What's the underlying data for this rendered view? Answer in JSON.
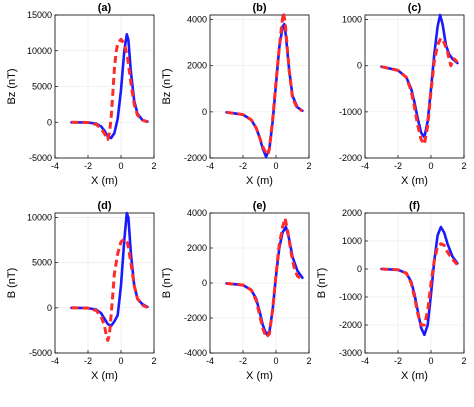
{
  "chart_data": [
    {
      "type": "line",
      "title": "(a)",
      "xlabel": "X (m)",
      "ylabel": "Bz (nT)",
      "xlim": [
        -4,
        2
      ],
      "ylim": [
        -5000,
        15000
      ],
      "xticks": [
        -4,
        -2,
        0,
        2
      ],
      "yticks": [
        -5000,
        0,
        5000,
        10000,
        15000
      ],
      "ytick_labels": [
        "-5000",
        "0",
        "5000",
        "10000",
        "15000"
      ],
      "grid": true,
      "series": [
        {
          "style": "solid",
          "color": "#1a1aff",
          "x": [
            -3.0,
            -2.0,
            -1.5,
            -1.2,
            -1.0,
            -0.8,
            -0.6,
            -0.4,
            -0.2,
            0.0,
            0.2,
            0.35,
            0.45,
            0.6,
            0.8,
            1.0,
            1.3,
            1.6
          ],
          "y": [
            0,
            -30,
            -200,
            -600,
            -1200,
            -2000,
            -2200,
            -1500,
            500,
            4500,
            10000,
            12300,
            11500,
            7000,
            3000,
            1200,
            300,
            100
          ]
        },
        {
          "style": "dashed",
          "color": "#ff2a2a",
          "x": [
            -3.0,
            -2.0,
            -1.5,
            -1.2,
            -1.0,
            -0.8,
            -0.7,
            -0.6,
            -0.5,
            -0.4,
            -0.3,
            -0.2,
            0.0,
            0.2,
            0.4,
            0.6,
            0.8,
            1.0,
            1.3,
            1.6
          ],
          "y": [
            0,
            -30,
            -300,
            -900,
            -1600,
            -2400,
            -1500,
            500,
            4000,
            7500,
            9800,
            11000,
            11600,
            11000,
            9000,
            5500,
            2500,
            1000,
            300,
            50
          ]
        }
      ]
    },
    {
      "type": "line",
      "title": "(b)",
      "xlabel": "X (m)",
      "ylabel": "Bz (nT)",
      "xlim": [
        -4,
        2
      ],
      "ylim": [
        -2000,
        4200
      ],
      "xticks": [
        -4,
        -2,
        0,
        2
      ],
      "yticks": [
        -2000,
        0,
        2000,
        4000
      ],
      "ytick_labels": [
        "-2000",
        "0",
        "2000",
        "4000"
      ],
      "grid": true,
      "series": [
        {
          "style": "solid",
          "color": "#1a1aff",
          "x": [
            -3.0,
            -2.0,
            -1.5,
            -1.2,
            -1.0,
            -0.8,
            -0.6,
            -0.4,
            -0.2,
            0.0,
            0.2,
            0.4,
            0.5,
            0.6,
            0.8,
            1.0,
            1.3,
            1.6
          ],
          "y": [
            -20,
            -120,
            -350,
            -700,
            -1100,
            -1600,
            -1950,
            -1600,
            -400,
            1200,
            2800,
            3700,
            3800,
            3300,
            1800,
            700,
            200,
            50
          ]
        },
        {
          "style": "dashed",
          "color": "#ff2a2a",
          "x": [
            -3.0,
            -2.0,
            -1.5,
            -1.2,
            -1.0,
            -0.8,
            -0.6,
            -0.5,
            -0.4,
            -0.2,
            0.0,
            0.2,
            0.35,
            0.45,
            0.55,
            0.8,
            1.0,
            1.3,
            1.6
          ],
          "y": [
            -20,
            -120,
            -350,
            -700,
            -1100,
            -1500,
            -1800,
            -1850,
            -1600,
            -300,
            1300,
            2800,
            3800,
            4300,
            3900,
            1800,
            600,
            150,
            50
          ]
        }
      ]
    },
    {
      "type": "line",
      "title": "(c)",
      "xlabel": "X (m)",
      "ylabel": "",
      "xlim": [
        -4,
        2
      ],
      "ylim": [
        -2000,
        1100
      ],
      "xticks": [
        -4,
        -2,
        0,
        2
      ],
      "yticks": [
        -2000,
        -1000,
        0,
        1000
      ],
      "ytick_labels": [
        "-2000",
        "-1000",
        "0",
        "1000"
      ],
      "grid": true,
      "series": [
        {
          "style": "solid",
          "color": "#1a1aff",
          "x": [
            -3.0,
            -2.0,
            -1.5,
            -1.2,
            -1.0,
            -0.8,
            -0.6,
            -0.4,
            -0.2,
            0.0,
            0.2,
            0.4,
            0.55,
            0.7,
            0.9,
            1.1,
            1.3,
            1.6
          ],
          "y": [
            -20,
            -100,
            -250,
            -500,
            -800,
            -1150,
            -1450,
            -1550,
            -1200,
            -500,
            250,
            850,
            1100,
            900,
            450,
            250,
            150,
            60
          ]
        },
        {
          "style": "dashed",
          "color": "#ff2a2a",
          "x": [
            -3.0,
            -2.0,
            -1.5,
            -1.2,
            -1.0,
            -0.8,
            -0.6,
            -0.4,
            -0.2,
            0.0,
            0.2,
            0.4,
            0.6,
            0.8,
            1.0,
            1.2,
            1.4,
            1.6
          ],
          "y": [
            -20,
            -100,
            -250,
            -550,
            -900,
            -1300,
            -1600,
            -1700,
            -1300,
            -550,
            100,
            450,
            600,
            500,
            300,
            0,
            150,
            80
          ]
        }
      ]
    },
    {
      "type": "line",
      "title": "(d)",
      "xlabel": "X (m)",
      "ylabel": "B (nT)",
      "xlim": [
        -4,
        2
      ],
      "ylim": [
        -5000,
        10500
      ],
      "xticks": [
        -4,
        -2,
        0,
        2
      ],
      "yticks": [
        -5000,
        0,
        5000,
        10000
      ],
      "ytick_labels": [
        "-5000",
        "0",
        "5000",
        "10000"
      ],
      "grid": true,
      "series": [
        {
          "style": "solid",
          "color": "#1a1aff",
          "x": [
            -3.0,
            -2.0,
            -1.5,
            -1.2,
            -1.0,
            -0.8,
            -0.6,
            -0.4,
            -0.2,
            0.0,
            0.2,
            0.35,
            0.45,
            0.6,
            0.8,
            1.0,
            1.3,
            1.6
          ],
          "y": [
            0,
            -30,
            -200,
            -600,
            -1200,
            -1800,
            -2000,
            -1500,
            -800,
            2500,
            7500,
            10500,
            10000,
            6000,
            2500,
            1000,
            400,
            100
          ]
        },
        {
          "style": "dashed",
          "color": "#ff2a2a",
          "x": [
            -3.0,
            -2.0,
            -1.5,
            -1.2,
            -1.0,
            -0.9,
            -0.8,
            -0.7,
            -0.6,
            -0.5,
            -0.4,
            -0.2,
            0.0,
            0.2,
            0.4,
            0.6,
            0.8,
            1.0,
            1.3,
            1.6
          ],
          "y": [
            0,
            -30,
            -300,
            -1000,
            -2000,
            -3000,
            -3600,
            -3000,
            -800,
            1500,
            3800,
            6000,
            7300,
            7600,
            7200,
            5000,
            2500,
            1000,
            300,
            50
          ]
        }
      ]
    },
    {
      "type": "line",
      "title": "(e)",
      "xlabel": "X (m)",
      "ylabel": "B (nT)",
      "xlim": [
        -4,
        2
      ],
      "ylim": [
        -4000,
        4000
      ],
      "xticks": [
        -4,
        -2,
        0,
        2
      ],
      "yticks": [
        -4000,
        -2000,
        0,
        2000,
        4000
      ],
      "ytick_labels": [
        "-4000",
        "-2000",
        "0",
        "2000",
        "4000"
      ],
      "grid": true,
      "series": [
        {
          "style": "solid",
          "color": "#1a1aff",
          "x": [
            -3.0,
            -2.0,
            -1.5,
            -1.2,
            -1.0,
            -0.8,
            -0.6,
            -0.4,
            -0.2,
            0.0,
            0.2,
            0.4,
            0.6,
            0.8,
            1.0,
            1.3,
            1.6
          ],
          "y": [
            -20,
            -120,
            -400,
            -900,
            -1600,
            -2400,
            -2900,
            -2800,
            -1500,
            400,
            2000,
            2900,
            3200,
            2500,
            1500,
            700,
            300
          ]
        },
        {
          "style": "dashed",
          "color": "#ff2a2a",
          "x": [
            -3.0,
            -2.0,
            -1.5,
            -1.2,
            -1.0,
            -0.8,
            -0.6,
            -0.4,
            -0.2,
            0.0,
            0.2,
            0.4,
            0.55,
            0.7,
            0.9,
            1.1,
            1.3,
            1.6
          ],
          "y": [
            -20,
            -120,
            -400,
            -1000,
            -1800,
            -2600,
            -3100,
            -2900,
            -1500,
            500,
            2200,
            3200,
            3700,
            3000,
            1800,
            900,
            400,
            200
          ]
        }
      ]
    },
    {
      "type": "line",
      "title": "(f)",
      "xlabel": "X (m)",
      "ylabel": "B (nT)",
      "xlim": [
        -4,
        2
      ],
      "ylim": [
        -3000,
        2000
      ],
      "xticks": [
        -4,
        -2,
        0,
        2
      ],
      "yticks": [
        -3000,
        -2000,
        -1000,
        0,
        1000,
        2000
      ],
      "ytick_labels": [
        "-3000",
        "-2000",
        "-1000",
        "0",
        "1000",
        "2000"
      ],
      "grid": true,
      "series": [
        {
          "style": "solid",
          "color": "#1a1aff",
          "x": [
            -3.0,
            -2.0,
            -1.5,
            -1.2,
            -1.0,
            -0.8,
            -0.6,
            -0.4,
            -0.2,
            0.0,
            0.2,
            0.4,
            0.6,
            0.8,
            1.0,
            1.3,
            1.6
          ],
          "y": [
            0,
            -30,
            -150,
            -450,
            -900,
            -1500,
            -2100,
            -2350,
            -2000,
            -900,
            300,
            1200,
            1500,
            1300,
            900,
            450,
            200
          ]
        },
        {
          "style": "dashed",
          "color": "#ff2a2a",
          "x": [
            -3.0,
            -2.0,
            -1.5,
            -1.2,
            -1.0,
            -0.8,
            -0.6,
            -0.4,
            -0.2,
            0.0,
            0.2,
            0.4,
            0.6,
            0.8,
            1.0,
            1.3,
            1.6
          ],
          "y": [
            0,
            -30,
            -150,
            -500,
            -1000,
            -1600,
            -2000,
            -2000,
            -1500,
            -500,
            300,
            800,
            900,
            850,
            600,
            350,
            150
          ]
        }
      ]
    }
  ]
}
